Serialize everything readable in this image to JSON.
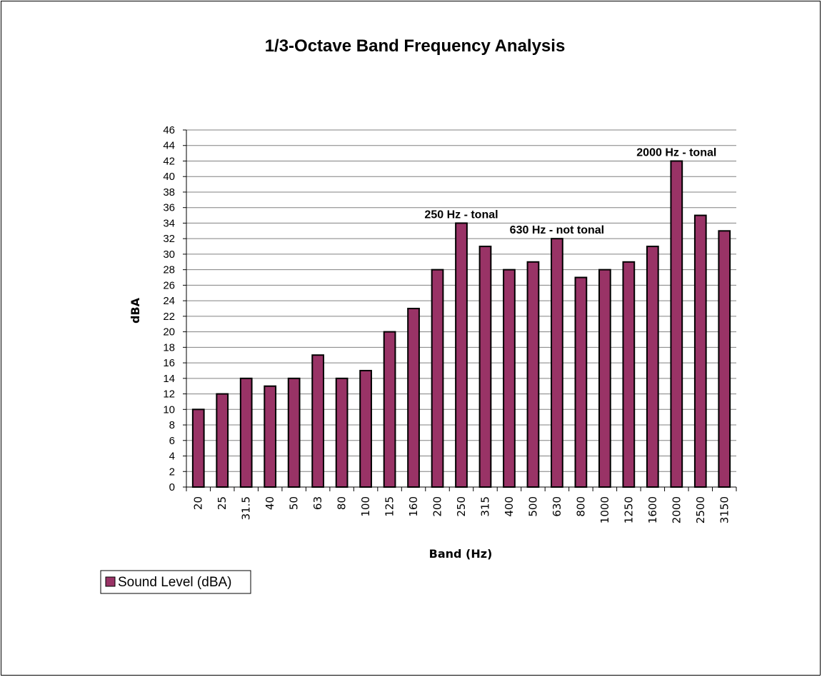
{
  "chart_data": {
    "type": "bar",
    "title": "1/3-Octave Band Frequency Analysis",
    "xlabel": "Band (Hz)",
    "ylabel": "dBA",
    "ylim": [
      0,
      46
    ],
    "ytick_step": 2,
    "grid": true,
    "legend_placement": "bottom-left",
    "bar_color": "#993366",
    "categories": [
      "20",
      "25",
      "31.5",
      "40",
      "50",
      "63",
      "80",
      "100",
      "125",
      "160",
      "200",
      "250",
      "315",
      "400",
      "500",
      "630",
      "800",
      "1000",
      "1250",
      "1600",
      "2000",
      "2500",
      "3150"
    ],
    "series": [
      {
        "name": "Sound Level (dBA)",
        "values": [
          10,
          12,
          14,
          13,
          14,
          17,
          14,
          15,
          20,
          23,
          28,
          34,
          31,
          28,
          29,
          32,
          27,
          28,
          29,
          31,
          42,
          35,
          33
        ]
      }
    ],
    "annotations": [
      {
        "text": "250 Hz - tonal",
        "category": "250",
        "value": 34
      },
      {
        "text": "630 Hz - not tonal",
        "category": "630",
        "value": 32
      },
      {
        "text": "2000 Hz - tonal",
        "category": "2000",
        "value": 42
      }
    ]
  }
}
